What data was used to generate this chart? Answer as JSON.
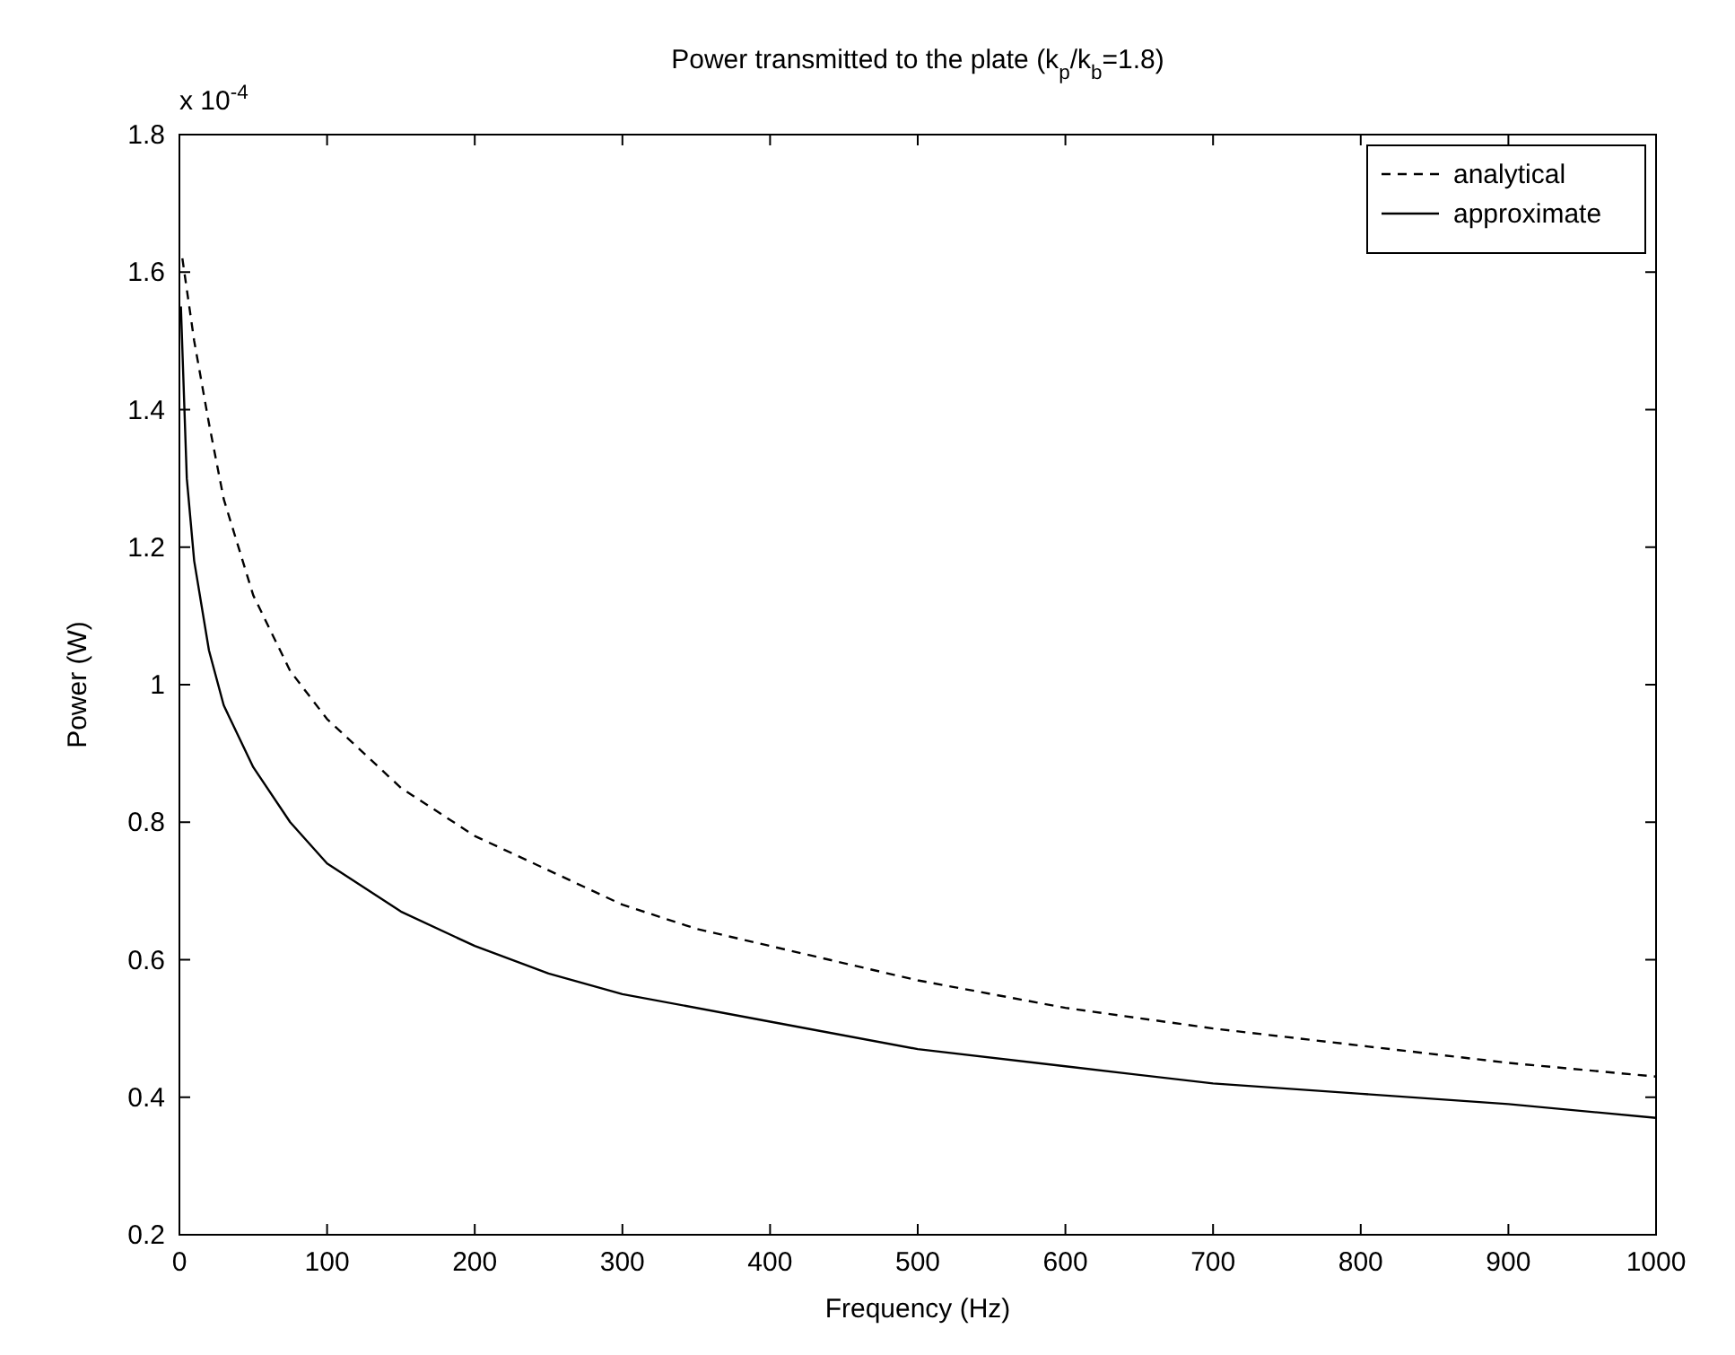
{
  "chart_data": {
    "type": "line",
    "title": "Power transmitted to the plate (k$_{p}$/k$_{b}$=1.8)",
    "xlabel": "Frequency (Hz)",
    "ylabel": "Power (W)",
    "annotations": [
      "x 10$^{-4}$"
    ],
    "xlim": [
      0,
      1000
    ],
    "xticks": [
      0,
      100,
      200,
      300,
      400,
      500,
      600,
      700,
      800,
      900,
      1000
    ],
    "ylim": [
      0.2,
      1.8
    ],
    "yticks": [
      0.2,
      0.4,
      0.6,
      0.8,
      1,
      1.2,
      1.4,
      1.6,
      1.8
    ],
    "grid": false,
    "legend": "top right",
    "marker": "none",
    "series": [
      {
        "name": "analytical",
        "color": "#000000",
        "line_style": "dashed",
        "x": [
          2,
          10,
          20,
          30,
          50,
          75,
          100,
          150,
          200,
          250,
          300,
          350,
          400,
          500,
          600,
          700,
          800,
          900,
          1000
        ],
        "values": [
          1.62,
          1.5,
          1.38,
          1.27,
          1.13,
          1.02,
          0.95,
          0.85,
          0.78,
          0.73,
          0.68,
          0.645,
          0.62,
          0.57,
          0.53,
          0.5,
          0.475,
          0.45,
          0.43
        ]
      },
      {
        "name": "approximate",
        "color": "#000000",
        "line_style": "solid",
        "x": [
          1,
          5,
          10,
          20,
          30,
          50,
          75,
          100,
          150,
          200,
          250,
          300,
          400,
          500,
          600,
          700,
          800,
          900,
          1000
        ],
        "values": [
          1.55,
          1.3,
          1.18,
          1.05,
          0.97,
          0.88,
          0.8,
          0.74,
          0.67,
          0.62,
          0.58,
          0.55,
          0.51,
          0.47,
          0.445,
          0.42,
          0.405,
          0.39,
          0.37
        ]
      }
    ]
  }
}
